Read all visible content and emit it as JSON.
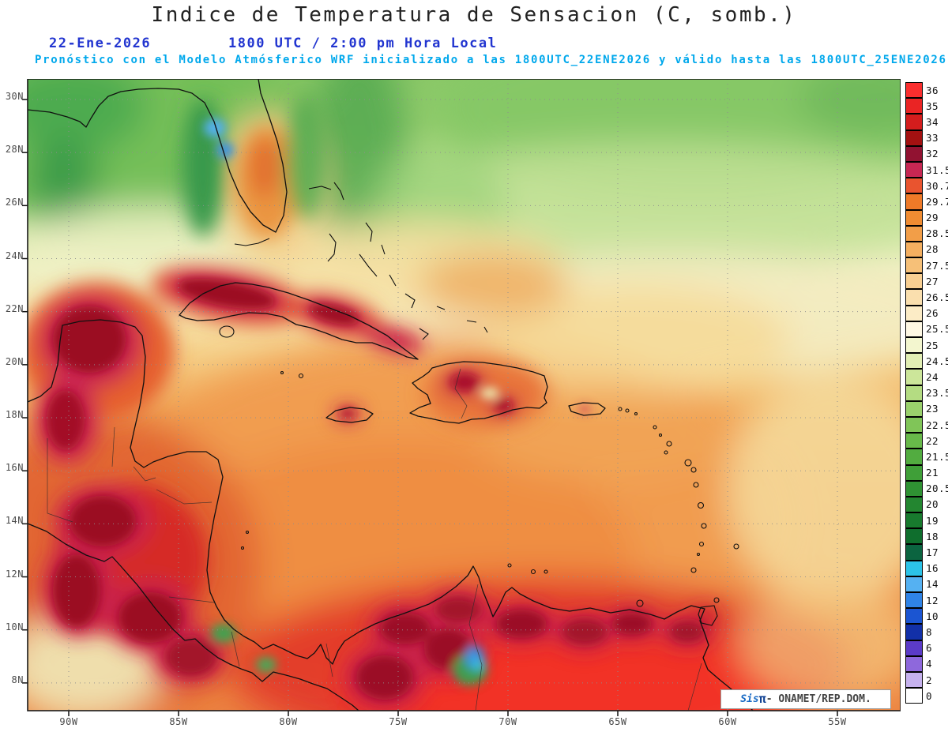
{
  "header": {
    "title": "Indice de Temperatura de Sensacion (C, somb.)",
    "date": "22-Ene-2026",
    "time": "1800 UTC / 2:00 pm Hora Local",
    "forecast": "Pronóstico con el Modelo Atmósferico WRF inicializado a las 1800UTC_22ENE2026 y válido hasta las  1800UTC_25ENE2026",
    "colors": {
      "date_time": "#2235d0",
      "forecast": "#00a8ec",
      "title": "#222222"
    }
  },
  "map": {
    "lat_ticks": [
      "30N",
      "28N",
      "26N",
      "24N",
      "22N",
      "20N",
      "18N",
      "16N",
      "14N",
      "12N",
      "10N",
      "8N"
    ],
    "lon_ticks": [
      "90W",
      "85W",
      "80W",
      "75W",
      "70W",
      "65W",
      "60W",
      "55W"
    ],
    "watermark": {
      "brand": "Sis",
      "brand_symbol": "π",
      "text": "- ONAMET/REP.DOM."
    }
  },
  "legend": {
    "entries": [
      {
        "label": "36",
        "color": "#fa2e2e"
      },
      {
        "label": "35",
        "color": "#ea2424"
      },
      {
        "label": "34",
        "color": "#d41d1d"
      },
      {
        "label": "33",
        "color": "#a31111"
      },
      {
        "label": "32",
        "color": "#911231"
      },
      {
        "label": "31.5",
        "color": "#c72753"
      },
      {
        "label": "30.7",
        "color": "#e9542f"
      },
      {
        "label": "29.7",
        "color": "#ef7a28"
      },
      {
        "label": "29",
        "color": "#f08c32"
      },
      {
        "label": "28.5",
        "color": "#f29e48"
      },
      {
        "label": "28",
        "color": "#f4af60"
      },
      {
        "label": "27.5",
        "color": "#f6c078"
      },
      {
        "label": "27",
        "color": "#f8cf92"
      },
      {
        "label": "26.5",
        "color": "#fadfae"
      },
      {
        "label": "26",
        "color": "#fcecc6"
      },
      {
        "label": "25.5",
        "color": "#fef8e4"
      },
      {
        "label": "25",
        "color": "#f3f6cf"
      },
      {
        "label": "24.5",
        "color": "#e2efb4"
      },
      {
        "label": "24",
        "color": "#cce69a"
      },
      {
        "label": "23.5",
        "color": "#b4dc82"
      },
      {
        "label": "23",
        "color": "#9ad16c"
      },
      {
        "label": "22.5",
        "color": "#80c558"
      },
      {
        "label": "22",
        "color": "#68b94a"
      },
      {
        "label": "21.5",
        "color": "#52ac40"
      },
      {
        "label": "21",
        "color": "#3f9f38"
      },
      {
        "label": "20.5",
        "color": "#2f9233"
      },
      {
        "label": "20",
        "color": "#238630"
      },
      {
        "label": "19",
        "color": "#187a2e"
      },
      {
        "label": "18",
        "color": "#0f6e2d"
      },
      {
        "label": "17",
        "color": "#0b6440"
      },
      {
        "label": "16",
        "color": "#2cc3e8"
      },
      {
        "label": "14",
        "color": "#55b1f2"
      },
      {
        "label": "12",
        "color": "#2f83e6"
      },
      {
        "label": "10",
        "color": "#1b55d2"
      },
      {
        "label": "8",
        "color": "#1230a8"
      },
      {
        "label": "6",
        "color": "#5b3bc8"
      },
      {
        "label": "4",
        "color": "#8e68dc"
      },
      {
        "label": "2",
        "color": "#c6b2ee"
      },
      {
        "label": "0",
        "color": "#ffffff"
      }
    ]
  }
}
